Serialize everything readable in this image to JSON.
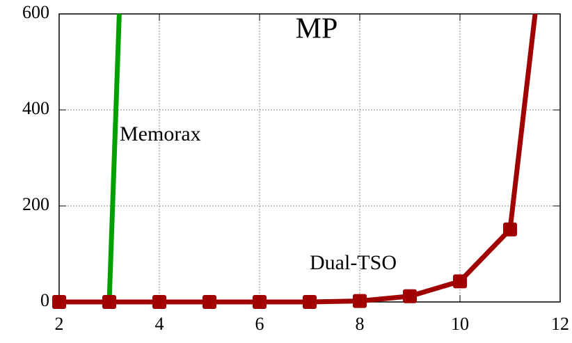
{
  "chart_data": {
    "type": "line",
    "title": "MP",
    "series": [
      {
        "name": "Memorax",
        "color": "#00a000",
        "marker": "circle",
        "x": [
          2,
          3,
          3.2
        ],
        "values": [
          0,
          0,
          600
        ]
      },
      {
        "name": "Dual-TSO",
        "color": "#a00000",
        "marker": "square",
        "x": [
          2,
          3,
          4,
          5,
          6,
          7,
          8,
          9,
          10,
          11,
          11.5
        ],
        "values": [
          0,
          0,
          0,
          0,
          0,
          0,
          2,
          12,
          43,
          151,
          600
        ]
      }
    ],
    "xlim": [
      2,
      12
    ],
    "xticks": [
      2,
      4,
      6,
      8,
      10,
      12
    ],
    "ylim": [
      0,
      600
    ],
    "yticks": [
      0,
      200,
      400,
      600
    ],
    "grid": true
  }
}
